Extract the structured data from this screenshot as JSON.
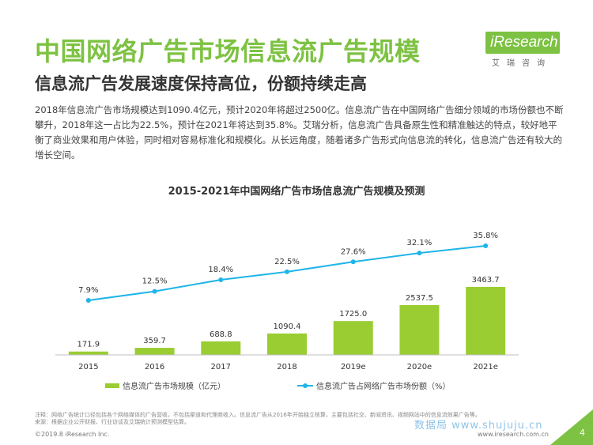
{
  "header": {
    "title": "中国网络广告市场信息流广告规模",
    "subtitle": "信息流广告发展速度保持高位，份额持续走高"
  },
  "logo": {
    "word": "iResearch",
    "subtext": "艾瑞咨询"
  },
  "body_text": "2018年信息流广告市场规模达到1090.4亿元，预计2020年将超过2500亿。信息流广告在中国网络广告细分领域的市场份额也不断攀升，2018年这一占比为22.5%，预计在2021年将达到35.8%。艾瑞分析，信息流广告具备原生性和精准触达的特点，较好地平衡了商业效果和用户体验，同时相对容易标准化和规模化。从长远角度，随着诸多广告形式向信息流的转化，信息流广告还有较大的增长空间。",
  "chart_data": {
    "type": "bar+line",
    "title": "2015-2021年中国网络广告市场信息流广告规模及预测",
    "categories": [
      "2015",
      "2016",
      "2017",
      "2018",
      "2019e",
      "2020e",
      "2021e"
    ],
    "series": [
      {
        "name": "信息流广告市场规模（亿元）",
        "type": "bar",
        "values": [
          171.9,
          359.7,
          688.8,
          1090.4,
          1725.0,
          2537.5,
          3463.7
        ],
        "labels": [
          "171.9",
          "359.7",
          "688.8",
          "1090.4",
          "1725.0",
          "2537.5",
          "3463.7"
        ]
      },
      {
        "name": "信息流广告占网络广告市场份额（%）",
        "type": "line",
        "values": [
          7.9,
          12.5,
          18.4,
          22.5,
          27.6,
          32.1,
          35.8
        ],
        "labels": [
          "7.9%",
          "12.5%",
          "18.4%",
          "22.5%",
          "27.6%",
          "32.1%",
          "35.8%"
        ]
      }
    ],
    "legend_position": "bottom",
    "grid": false
  },
  "colors": {
    "bar": "#9acd32",
    "line": "#1fb5e8",
    "title": "#7dc242",
    "corner": "#7dc242"
  },
  "footer": {
    "notes": [
      "注释：网络广告统计口径包括各个网络媒体的广告营收，不包括渠道和代理商收入。信息流广告从2016年开始独立核算，主要包括社交、新闻资讯、视频网站中的信息流效果广告等。",
      "来源：根据企业公开财报、行业访谈及艾瑞统计预测模型估算。"
    ],
    "copyright": "©2019.8 iResearch Inc.",
    "website": "www.iresearch.com.cn",
    "page_number": "4",
    "watermark": "数据局 www.shujuju.cn"
  }
}
